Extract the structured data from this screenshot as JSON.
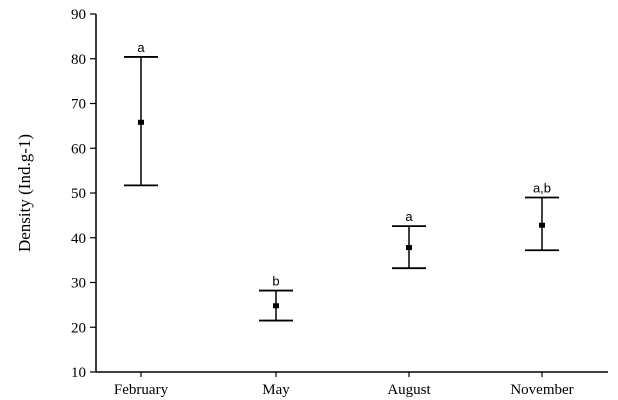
{
  "chart_data": {
    "type": "scatter",
    "title": "",
    "xlabel": "",
    "ylabel": "Density (Ind.g-1)",
    "ylim": [
      10,
      90
    ],
    "yticks": [
      10,
      20,
      30,
      40,
      50,
      60,
      70,
      80,
      90
    ],
    "grid": false,
    "categories": [
      "February",
      "May",
      "August",
      "November"
    ],
    "series": [
      {
        "mean": [
          65.8,
          24.8,
          37.8,
          42.8
        ],
        "lower": [
          51.7,
          21.5,
          33.2,
          37.2
        ],
        "upper": [
          80.4,
          28.2,
          42.6,
          49.0
        ]
      }
    ],
    "annotations": [
      "a",
      "b",
      "a",
      "a,b"
    ]
  }
}
